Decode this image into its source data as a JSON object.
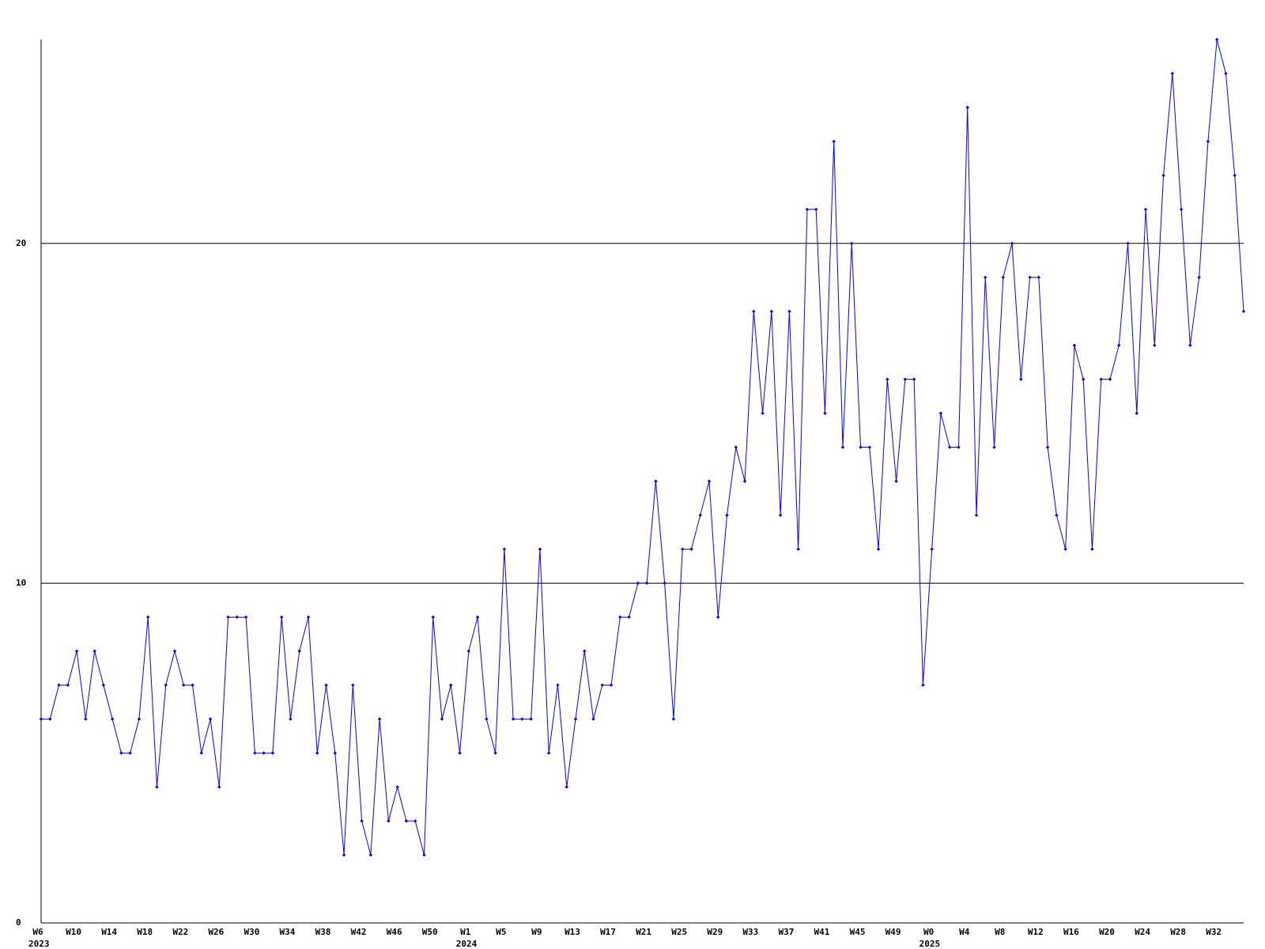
{
  "chart_data": {
    "type": "line",
    "color": "#0000ff",
    "grid": true,
    "ylim": [
      0,
      26
    ],
    "yticks": [
      0,
      10,
      20
    ],
    "categories": [
      "W6",
      null,
      null,
      null,
      "W10",
      null,
      null,
      null,
      "W14",
      null,
      null,
      null,
      "W18",
      null,
      null,
      null,
      "W22",
      null,
      null,
      null,
      "W26",
      null,
      null,
      null,
      "W30",
      null,
      null,
      null,
      "W34",
      null,
      null,
      null,
      "W38",
      null,
      null,
      null,
      "W42",
      null,
      null,
      null,
      "W46",
      null,
      null,
      null,
      "W50",
      null,
      null,
      null,
      "W1",
      null,
      null,
      null,
      "W5",
      null,
      null,
      null,
      "W9",
      null,
      null,
      null,
      "W13",
      null,
      null,
      null,
      "W17",
      null,
      null,
      null,
      "W21",
      null,
      null,
      null,
      "W25",
      null,
      null,
      null,
      "W29",
      null,
      null,
      null,
      "W33",
      null,
      null,
      null,
      "W37",
      null,
      null,
      null,
      "W41",
      null,
      null,
      null,
      "W45",
      null,
      null,
      null,
      "W49",
      null,
      null,
      null,
      "W0",
      null,
      null,
      null,
      "W4",
      null,
      null,
      null,
      "W8",
      null,
      null,
      null,
      "W12",
      null,
      null,
      null,
      "W16",
      null,
      null,
      null,
      "W20",
      null,
      null,
      null,
      "W24",
      null,
      null,
      null,
      "W28",
      null,
      null,
      null,
      "W32",
      null,
      null,
      null
    ],
    "category_years": [
      "2023",
      null,
      null,
      null,
      null,
      null,
      null,
      null,
      null,
      null,
      null,
      null,
      null,
      null,
      null,
      null,
      null,
      null,
      null,
      null,
      null,
      null,
      null,
      null,
      null,
      null,
      null,
      null,
      null,
      null,
      null,
      null,
      null,
      null,
      null,
      null,
      null,
      null,
      null,
      null,
      null,
      null,
      null,
      null,
      null,
      null,
      null,
      null,
      "2024",
      null,
      null,
      null,
      null,
      null,
      null,
      null,
      null,
      null,
      null,
      null,
      null,
      null,
      null,
      null,
      null,
      null,
      null,
      null,
      null,
      null,
      null,
      null,
      null,
      null,
      null,
      null,
      null,
      null,
      null,
      null,
      null,
      null,
      null,
      null,
      null,
      null,
      null,
      null,
      null,
      null,
      null,
      null,
      null,
      null,
      null,
      null,
      null,
      null,
      null,
      null,
      "2025",
      null,
      null,
      null,
      null,
      null,
      null,
      null,
      null,
      null,
      null,
      null,
      null,
      null,
      null,
      null,
      null,
      null,
      null,
      null,
      null,
      null,
      null,
      null,
      null,
      null,
      null,
      null,
      null,
      null,
      null,
      null,
      null,
      null,
      null,
      null
    ],
    "values": [
      6,
      6,
      7,
      7,
      8,
      6,
      8,
      7,
      6,
      5,
      5,
      6,
      9,
      4,
      7,
      8,
      7,
      7,
      5,
      6,
      4,
      9,
      9,
      9,
      5,
      5,
      5,
      9,
      6,
      8,
      9,
      5,
      7,
      5,
      2,
      7,
      3,
      2,
      6,
      3,
      4,
      3,
      3,
      2,
      9,
      6,
      7,
      5,
      8,
      9,
      6,
      5,
      11,
      6,
      6,
      6,
      11,
      5,
      7,
      4,
      6,
      8,
      6,
      7,
      7,
      9,
      9,
      10,
      10,
      13,
      10,
      6,
      11,
      11,
      12,
      13,
      9,
      12,
      14,
      13,
      18,
      15,
      18,
      12,
      18,
      11,
      21,
      21,
      15,
      23,
      14,
      20,
      14,
      14,
      11,
      16,
      13,
      16,
      16,
      7,
      11,
      15,
      14,
      14,
      24,
      12,
      19,
      14,
      19,
      20,
      16,
      19,
      19,
      14,
      12,
      11,
      17,
      16,
      11,
      16,
      16,
      17,
      20,
      15,
      21,
      17,
      22,
      25,
      21,
      17,
      19,
      23,
      26,
      25,
      22,
      18
    ]
  }
}
